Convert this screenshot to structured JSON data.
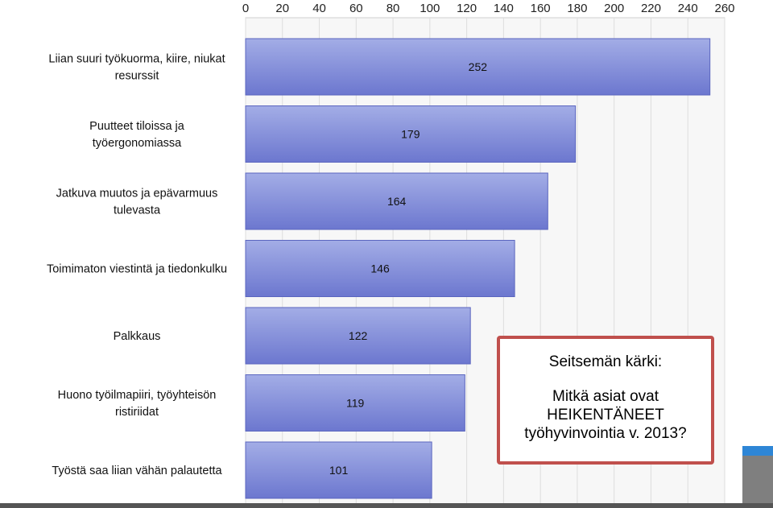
{
  "chart_data": {
    "type": "bar",
    "orientation": "horizontal",
    "title": "",
    "xlabel": "",
    "ylabel": "",
    "xlim": [
      0,
      260
    ],
    "x_ticks": [
      0,
      20,
      40,
      60,
      80,
      100,
      120,
      140,
      160,
      180,
      200,
      220,
      240,
      260
    ],
    "grid": true,
    "categories": [
      [
        "Liian suuri työkuorma, kiire, niukat",
        "resurssit"
      ],
      [
        "Puutteet tiloissa ja",
        "työergonomiassa"
      ],
      [
        "Jatkuva muutos ja epävarmuus",
        "tulevasta"
      ],
      [
        "Toimimaton viestintä ja tiedonkulku"
      ],
      [
        "Palkkaus"
      ],
      [
        "Huono työilmapiiri, työyhteisön",
        "ristiriidat"
      ],
      [
        "Työstä saa liian vähän palautetta"
      ]
    ],
    "values": [
      252,
      179,
      164,
      146,
      122,
      119,
      101
    ],
    "colors": {
      "bar_top": "#a3ade6",
      "bar_bottom": "#6c77cf",
      "bar_edge": "#5b66bf",
      "plot_bg": "#f7f7f7",
      "grid": "#dddddd"
    }
  },
  "callout": {
    "heading": "Seitsemän kärki:",
    "body": "Mitkä asiat ovat HEIKENTÄNEET työhyvinvointia v. 2013?"
  }
}
